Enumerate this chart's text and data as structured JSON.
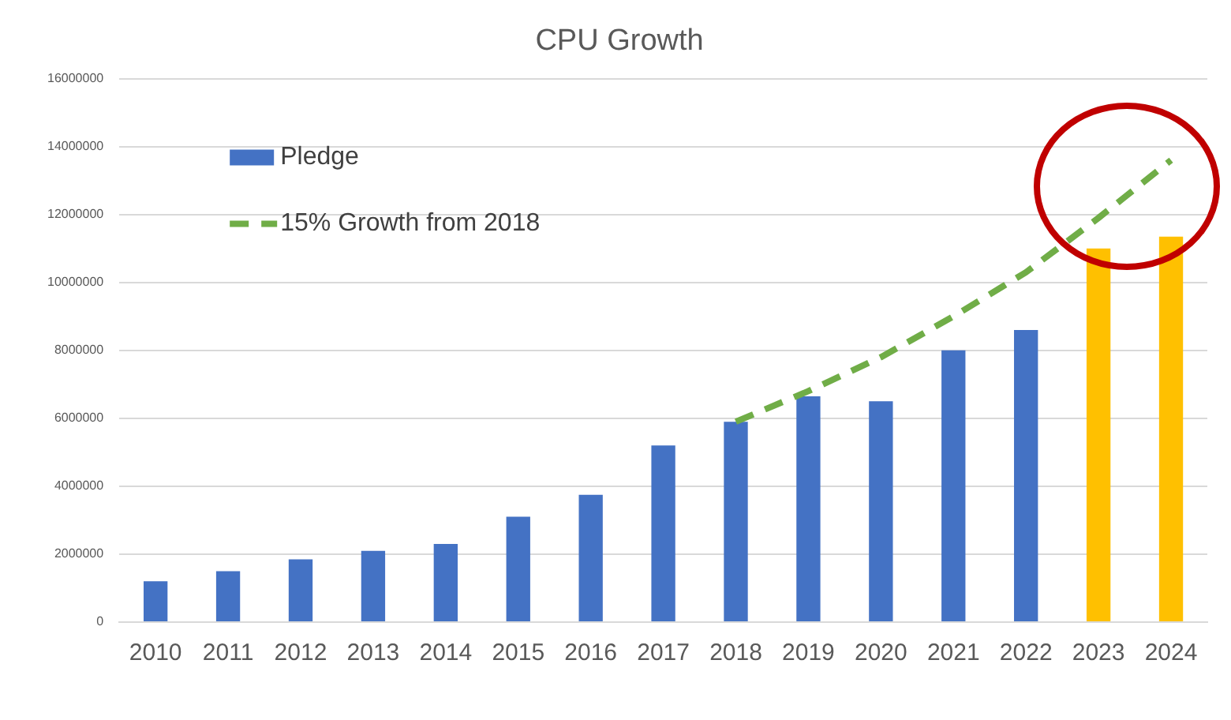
{
  "chart_data": {
    "type": "bar",
    "title": "CPU Growth",
    "categories": [
      "2010",
      "2011",
      "2012",
      "2013",
      "2014",
      "2015",
      "2016",
      "2017",
      "2018",
      "2019",
      "2020",
      "2021",
      "2022",
      "2023",
      "2024"
    ],
    "series": [
      {
        "name": "Pledge",
        "color": "#4472c4",
        "colors": [
          "#4472c4",
          "#4472c4",
          "#4472c4",
          "#4472c4",
          "#4472c4",
          "#4472c4",
          "#4472c4",
          "#4472c4",
          "#4472c4",
          "#4472c4",
          "#4472c4",
          "#4472c4",
          "#4472c4",
          "#ffc000",
          "#ffc000"
        ],
        "values": [
          1200000,
          1500000,
          1850000,
          2100000,
          2300000,
          3100000,
          3750000,
          5200000,
          5900000,
          6650000,
          6500000,
          8000000,
          8600000,
          11000000,
          11350000
        ]
      },
      {
        "name": "15% Growth from 2018",
        "type": "line",
        "color": "#70ad47",
        "line_style": "dashed",
        "values": [
          null,
          null,
          null,
          null,
          null,
          null,
          null,
          null,
          5900000,
          6800000,
          7800000,
          9000000,
          10300000,
          11900000,
          13600000
        ]
      }
    ],
    "ylim": [
      0,
      16000000
    ],
    "yticks": [
      0,
      2000000,
      4000000,
      6000000,
      8000000,
      10000000,
      12000000,
      14000000,
      16000000
    ],
    "grid": "y",
    "legend": "top left",
    "marker": "none"
  }
}
